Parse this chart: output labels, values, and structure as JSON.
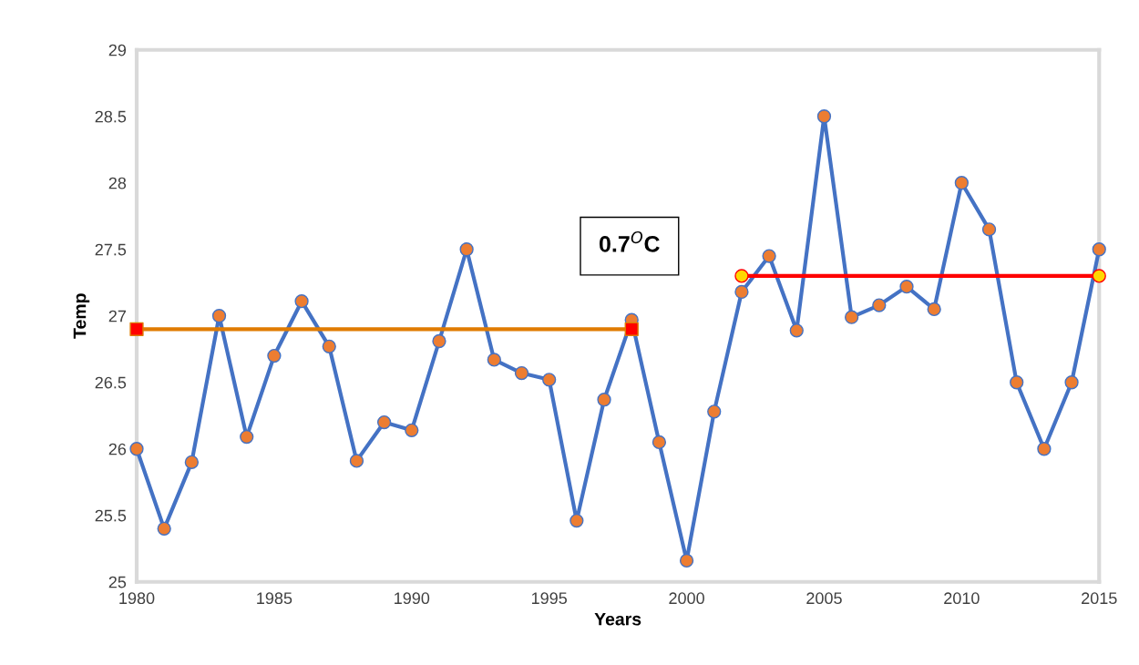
{
  "chart_data": {
    "type": "line",
    "xlabel": "Years",
    "ylabel": "Temp",
    "x": [
      1980,
      1981,
      1982,
      1983,
      1984,
      1985,
      1986,
      1987,
      1988,
      1989,
      1990,
      1991,
      1992,
      1993,
      1994,
      1995,
      1996,
      1997,
      1998,
      1999,
      2000,
      2001,
      2002,
      2003,
      2004,
      2005,
      2006,
      2007,
      2008,
      2009,
      2010,
      2011,
      2012,
      2013,
      2014,
      2015
    ],
    "series": [
      {
        "color": "#4472c4",
        "marker": "circle",
        "colors": [
          "#ed7d31",
          "#ed7d31",
          "#ed7d31",
          "#ed7d31",
          "#ed7d31",
          "#ed7d31",
          "#ed7d31",
          "#ed7d31",
          "#ed7d31",
          "#ed7d31",
          "#ed7d31",
          "#ed7d31",
          "#ed7d31",
          "#ed7d31",
          "#ed7d31",
          "#ed7d31",
          "#ed7d31",
          "#ed7d31",
          "#ed7d31",
          "#ed7d31",
          "#ed7d31",
          "#ed7d31",
          "#ed7d31",
          "#ed7d31",
          "#ed7d31",
          "#ed7d31",
          "#ed7d31",
          "#ed7d31",
          "#ed7d31",
          "#ed7d31",
          "#ed7d31",
          "#ed7d31",
          "#ed7d31",
          "#ed7d31",
          "#ed7d31",
          "#ed7d31"
        ],
        "values": [
          26.0,
          25.4,
          25.9,
          27.0,
          26.09,
          26.7,
          27.11,
          26.77,
          25.91,
          26.2,
          26.14,
          26.81,
          27.5,
          26.67,
          26.57,
          26.52,
          25.46,
          26.37,
          26.97,
          26.05,
          25.16,
          26.28,
          27.18,
          27.45,
          26.89,
          28.5,
          26.99,
          27.08,
          27.22,
          27.05,
          28.0,
          27.65,
          26.5,
          26.0,
          26.5,
          27.5
        ]
      },
      {
        "type": "line",
        "x": [
          1980,
          1998
        ],
        "color": "#e07b00",
        "marker": "square",
        "colors": [
          "#ff0000",
          "#ff0000"
        ],
        "values": [
          26.9,
          26.9
        ]
      },
      {
        "type": "line",
        "x": [
          2002,
          2015
        ],
        "color": "#ff0000",
        "marker": "circle",
        "colors": [
          "#ffd700",
          "#ffd700"
        ],
        "values": [
          27.3,
          27.3
        ]
      }
    ],
    "annotations": [
      "0.7$^{O}$C"
    ],
    "xlim": [
      1980,
      2015
    ],
    "xticks": [
      1980,
      1985,
      1990,
      1995,
      2000,
      2005,
      2010,
      2015
    ],
    "ylim": [
      25,
      29
    ],
    "yticks": [
      25,
      25.5,
      26,
      26.5,
      27,
      27.5,
      28,
      28.5,
      29
    ],
    "grid": false,
    "line_style": "solid"
  }
}
